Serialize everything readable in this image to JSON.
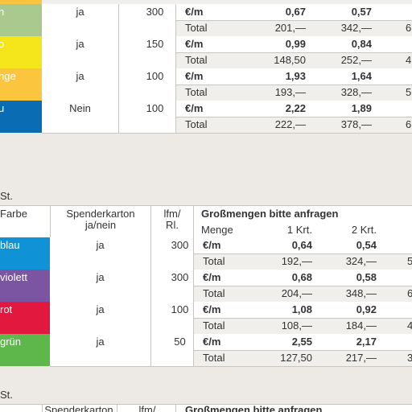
{
  "table1": {
    "rows": [
      {
        "color": "#a9c98f",
        "label": "n",
        "dispenser": "ja",
        "lfm": "300",
        "unit": "€/m",
        "p1": "0,67",
        "p2": "0,57",
        "total": "Total",
        "t1": "201,—",
        "t2": "342,—",
        "t3": "6"
      },
      {
        "color": "#f4e61a",
        "label": "o",
        "dispenser": "ja",
        "lfm": "150",
        "unit": "€/m",
        "p1": "0,99",
        "p2": "0,84",
        "total": "Total",
        "t1": "148,50",
        "t2": "252,—",
        "t3": "4"
      },
      {
        "color": "#fbc53e",
        "label": "nge",
        "dispenser": "ja",
        "lfm": "100",
        "unit": "€/m",
        "p1": "1,93",
        "p2": "1,64",
        "total": "Total",
        "t1": "193,—",
        "t2": "328,—",
        "t3": "5"
      },
      {
        "color": "#0a6db3",
        "label": "u",
        "dispenser": "Nein",
        "lfm": "100",
        "unit": "€/m",
        "p1": "2,22",
        "p2": "1,89",
        "total": "Total",
        "t1": "222,—",
        "t2": "378,—",
        "t3": "6"
      }
    ]
  },
  "table2": {
    "caption": "St.",
    "header": {
      "color": "Farbe",
      "dispenser": "Spenderkarton\nja/nein",
      "lfm": "lfm/\nRl.",
      "bulk": "Großmengen bitte anfragen",
      "qty": "Menge",
      "c1": "1 Krt.",
      "c2": "2 Krt."
    },
    "rows": [
      {
        "color": "#1093d6",
        "label": "blau",
        "dispenser": "ja",
        "lfm": "300",
        "unit": "€/m",
        "p1": "0,64",
        "p2": "0,54",
        "total": "Total",
        "t1": "192,—",
        "t2": "324,—",
        "t3": "5"
      },
      {
        "color": "#7b55a2",
        "label": "violett",
        "dispenser": "ja",
        "lfm": "300",
        "unit": "€/m",
        "p1": "0,68",
        "p2": "0,58",
        "total": "Total",
        "t1": "204,—",
        "t2": "348,—",
        "t3": "6"
      },
      {
        "color": "#e2183f",
        "label": "rot",
        "dispenser": "ja",
        "lfm": "100",
        "unit": "€/m",
        "p1": "1,08",
        "p2": "0,92",
        "total": "Total",
        "t1": "108,—",
        "t2": "184,—",
        "t3": "4"
      },
      {
        "color": "#5db74a",
        "label": "grün",
        "dispenser": "ja",
        "lfm": "50",
        "unit": "€/m",
        "p1": "2,55",
        "p2": "2,17",
        "total": "Total",
        "t1": "127,50",
        "t2": "217,—",
        "t3": "3"
      }
    ]
  },
  "table3": {
    "caption": "St.",
    "header": {
      "dispenser": "Spenderkarton",
      "lfm": "lfm/",
      "bulk": "Großmengen bitte anfragen"
    }
  }
}
